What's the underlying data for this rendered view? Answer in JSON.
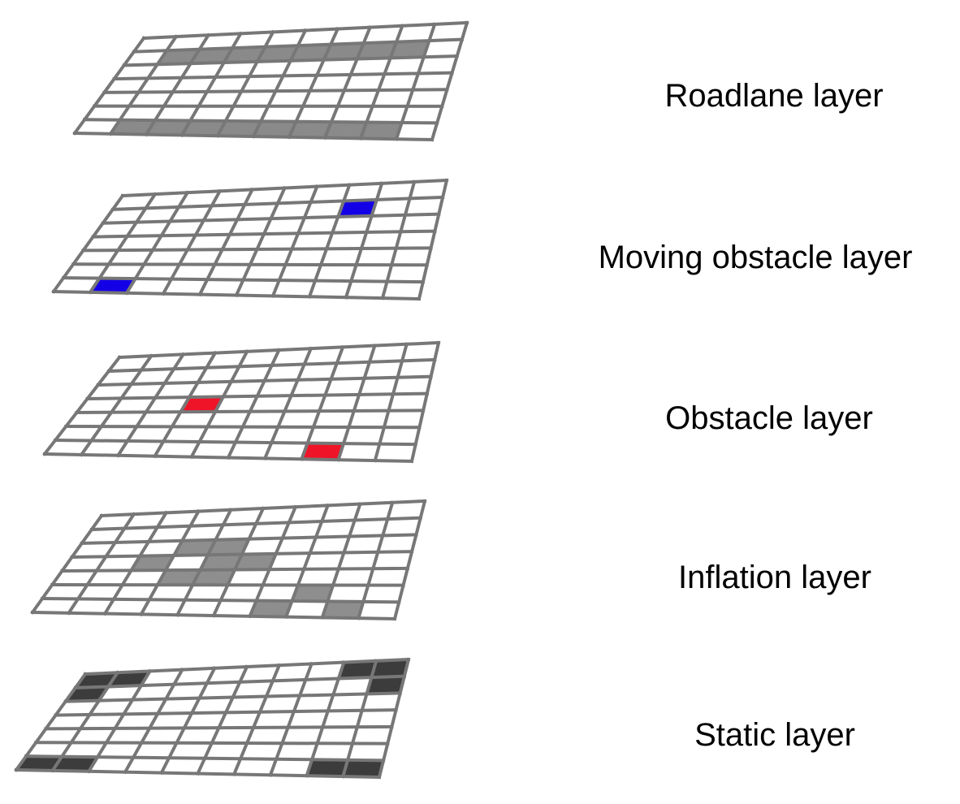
{
  "colors": {
    "grid_line": "#777777",
    "cell_empty": "#ffffff",
    "roadlane": "#8a8a8a",
    "moving_obstacle": "#1400e6",
    "obstacle": "#f01428",
    "inflation": "#8e8e8e",
    "static": "#3c3c3c"
  },
  "grid": {
    "columns": 10,
    "rows": 7
  },
  "layers": [
    {
      "id": "roadlane",
      "label": "Roadlane layer",
      "fill": "roadlane",
      "cells": [
        [
          1,
          1
        ],
        [
          2,
          1
        ],
        [
          3,
          1
        ],
        [
          4,
          1
        ],
        [
          5,
          1
        ],
        [
          6,
          1
        ],
        [
          7,
          1
        ],
        [
          8,
          1
        ],
        [
          1,
          6
        ],
        [
          2,
          6
        ],
        [
          3,
          6
        ],
        [
          4,
          6
        ],
        [
          5,
          6
        ],
        [
          6,
          6
        ],
        [
          7,
          6
        ],
        [
          8,
          6
        ]
      ]
    },
    {
      "id": "moving-obstacle",
      "label": "Moving obstacle layer",
      "fill": "moving_obstacle",
      "cells": [
        [
          7,
          1
        ],
        [
          1,
          6
        ]
      ]
    },
    {
      "id": "obstacle",
      "label": "Obstacle layer",
      "fill": "obstacle",
      "cells": [
        [
          3,
          3
        ],
        [
          7,
          6
        ]
      ]
    },
    {
      "id": "inflation",
      "label": "Inflation layer",
      "fill": "inflation",
      "cells": [
        [
          3,
          2
        ],
        [
          4,
          2
        ],
        [
          2,
          3
        ],
        [
          4,
          3
        ],
        [
          5,
          3
        ],
        [
          3,
          4
        ],
        [
          4,
          4
        ],
        [
          7,
          5
        ],
        [
          6,
          6
        ],
        [
          8,
          6
        ]
      ]
    },
    {
      "id": "static",
      "label": "Static layer",
      "fill": "static",
      "cells": [
        [
          0,
          0
        ],
        [
          1,
          0
        ],
        [
          0,
          1
        ],
        [
          8,
          0
        ],
        [
          9,
          0
        ],
        [
          9,
          1
        ],
        [
          0,
          6
        ],
        [
          1,
          6
        ],
        [
          8,
          6
        ],
        [
          9,
          6
        ]
      ]
    }
  ]
}
